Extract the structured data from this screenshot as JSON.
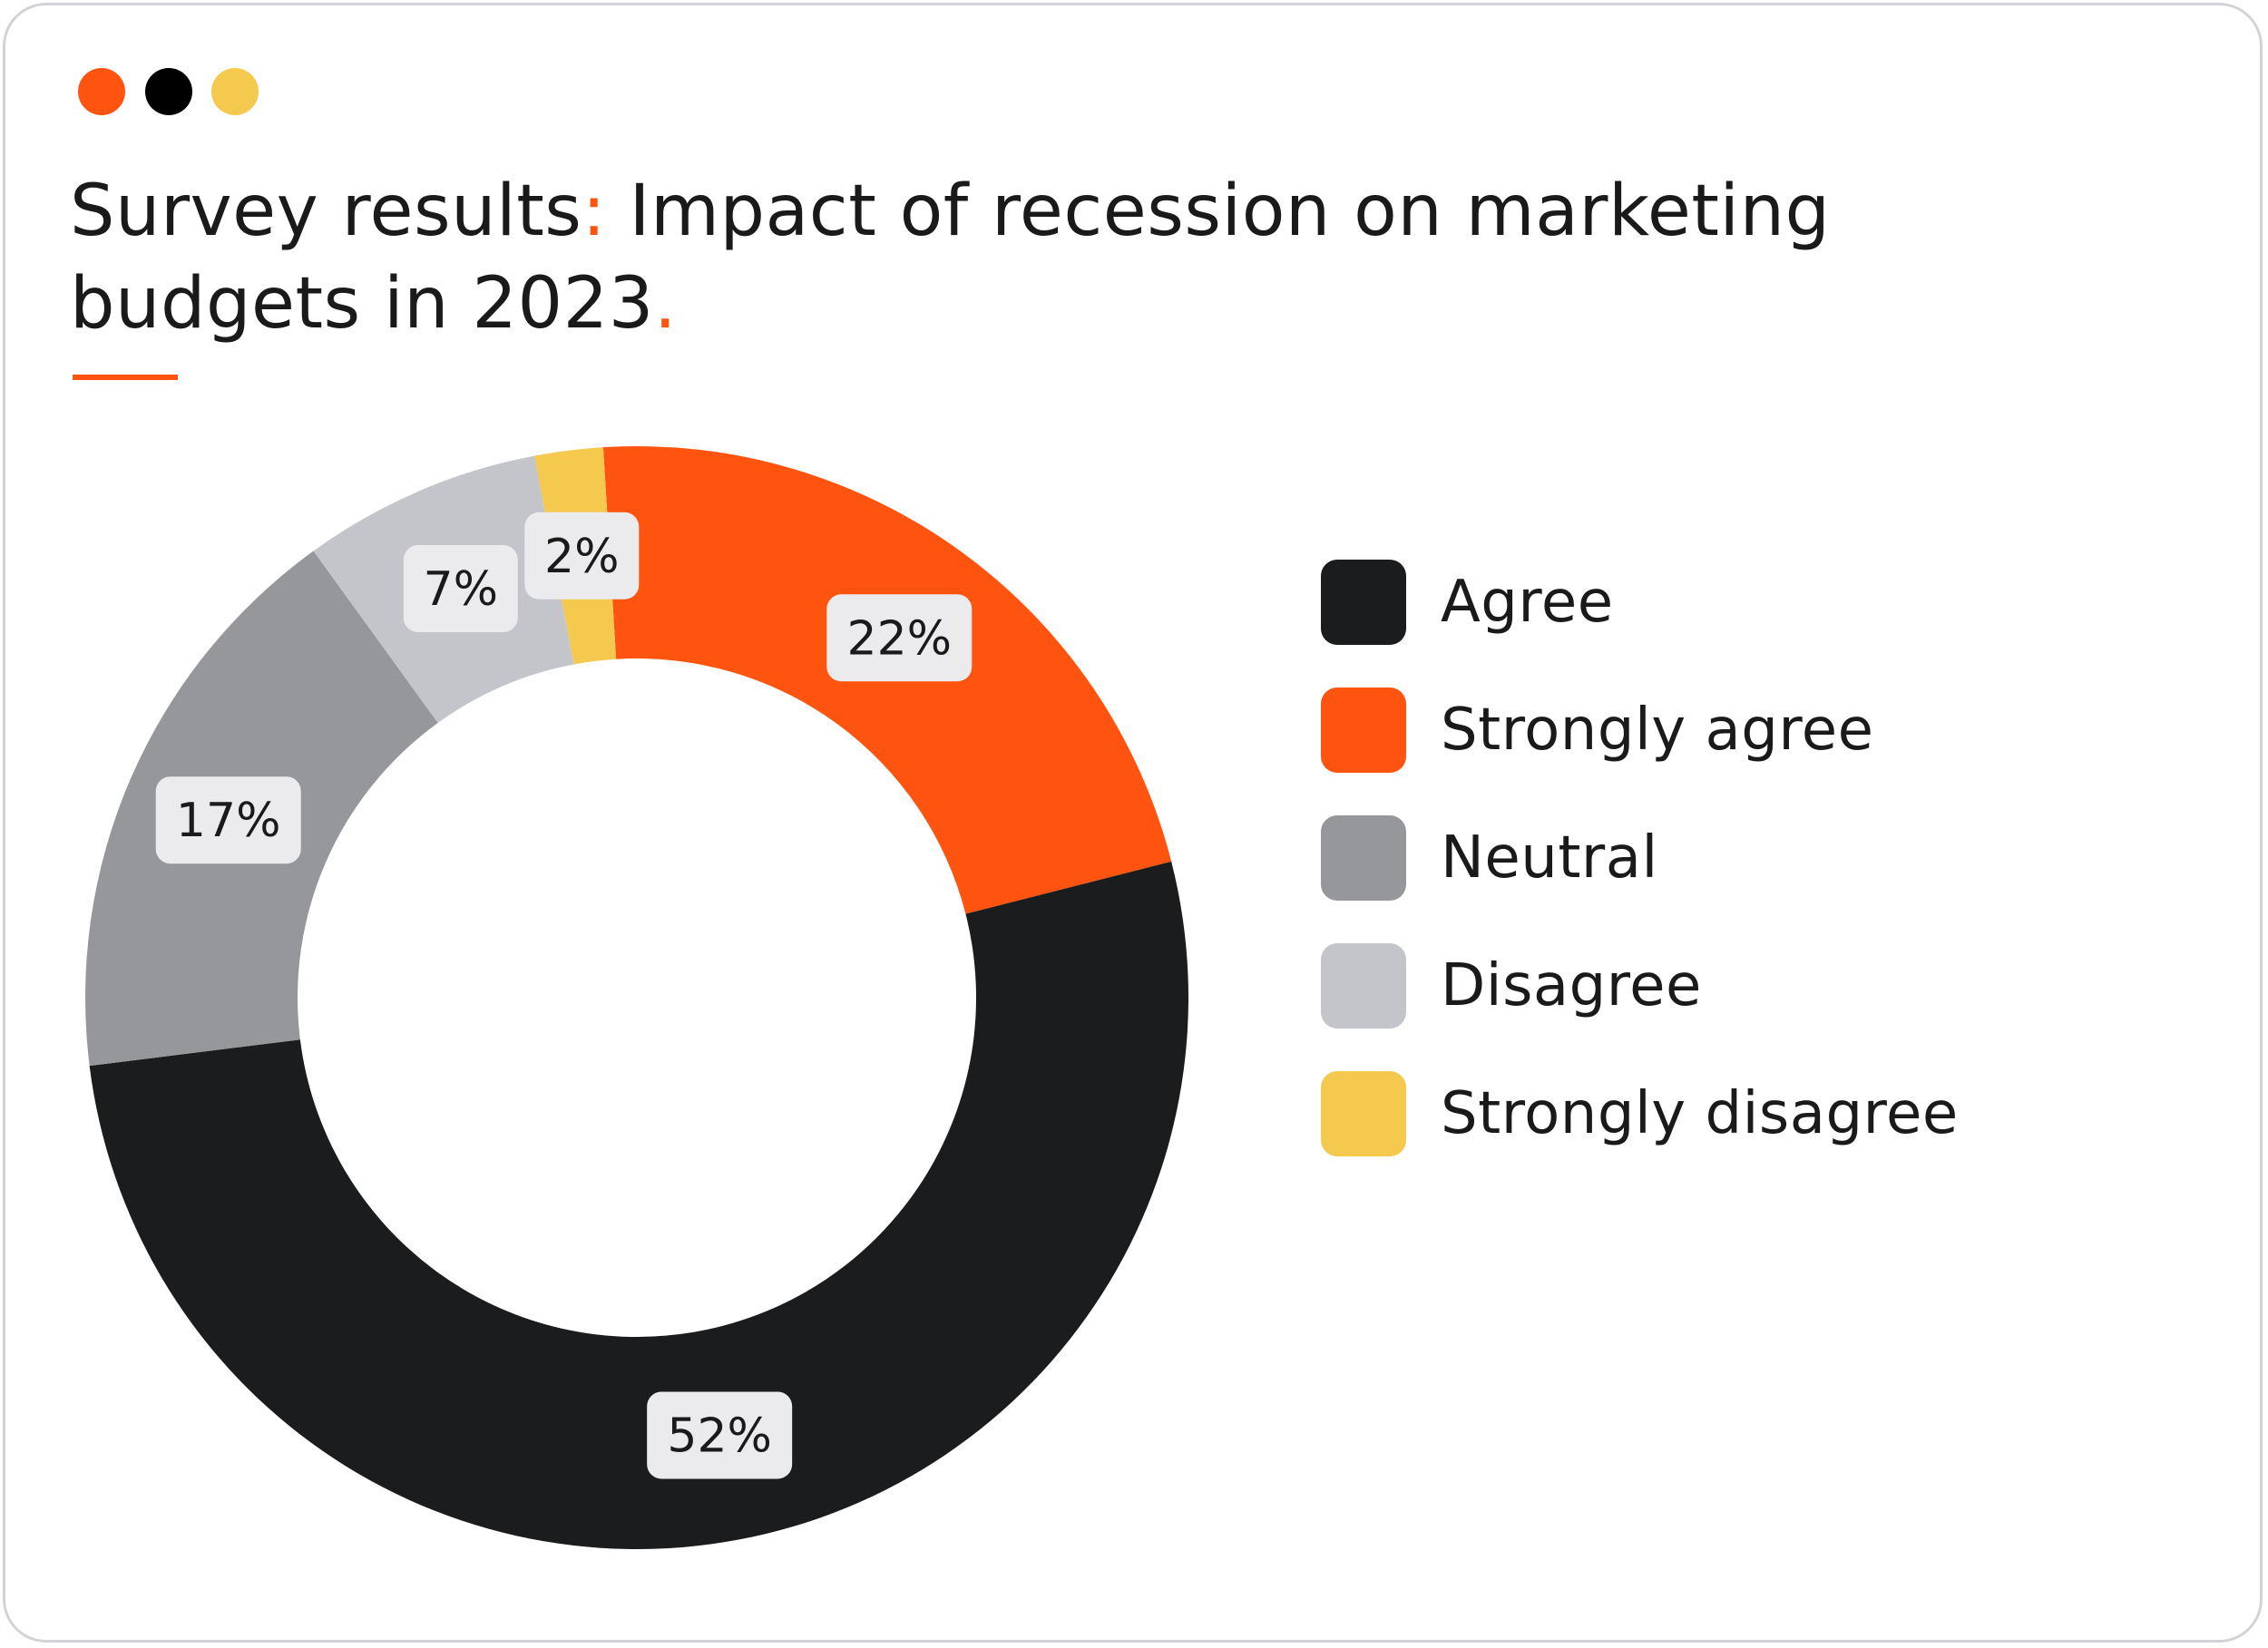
{
  "window": {
    "dots": [
      "#ff5310",
      "#000000",
      "#f5c94e"
    ]
  },
  "header": {
    "title_main": "Survey results",
    "title_colon": ":",
    "title_rest": " Impact of recession on marketing budgets in 2023",
    "title_period": "."
  },
  "colors": {
    "accent": "#ff5310",
    "label_bg": "#ebebed",
    "text": "#1a1a1a"
  },
  "chart_data": {
    "type": "pie",
    "donut": true,
    "title": "Survey results: Impact of recession on marketing budgets in 2023.",
    "legend_position": "right",
    "slices": [
      {
        "label": "Strongly agree",
        "value": 22,
        "display": "22%",
        "color": "#ff5310"
      },
      {
        "label": "Agree",
        "value": 52,
        "display": "52%",
        "color": "#1b1c1e"
      },
      {
        "label": "Neutral",
        "value": 17,
        "display": "17%",
        "color": "#96979a"
      },
      {
        "label": "Disagree",
        "value": 7,
        "display": "7%",
        "color": "#c3c5ca"
      },
      {
        "label": "Strongly disagree",
        "value": 2,
        "display": "2%",
        "color": "#f5c94e"
      }
    ],
    "legend": [
      {
        "label": "Agree",
        "color": "#1b1c1e"
      },
      {
        "label": "Strongly agree",
        "color": "#ff5310"
      },
      {
        "label": "Neutral",
        "color": "#96979a"
      },
      {
        "label": "Disagree",
        "color": "#c3c5ca"
      },
      {
        "label": "Strongly disagree",
        "color": "#f5c94e"
      }
    ]
  }
}
